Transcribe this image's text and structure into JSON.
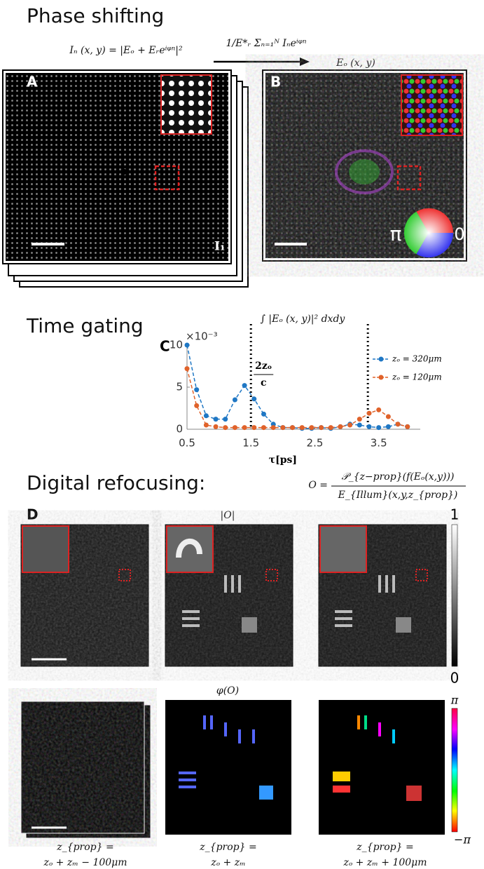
{
  "headings": {
    "phase": "Phase shifting",
    "time": "Time gating",
    "refocus": "Digital refocusing:"
  },
  "phase_shifting": {
    "equation": "Iₙ (x, y) = |Eₒ + Eᵣeⁱᵠⁿ|²",
    "arrow_label": "1/E*ᵣ Σₙ₌₁ᴺ Iₙeⁱᵠⁿ",
    "result": "Eₒ (x, y)",
    "panel_a": "A",
    "frame_label": "I₁",
    "panel_b": "B",
    "wheel_left": "π",
    "wheel_right": "0"
  },
  "time_gating": {
    "integral": "∫ |Eₒ (x, y)|² dxdy"
  },
  "chart_data": {
    "type": "line",
    "panel_label": "C",
    "multiplier": "×10⁻³",
    "x_label": "τ[ps]",
    "annotation_top": "2zₒ",
    "annotation_bottom": "c",
    "vlines": [
      1.5,
      3.33
    ],
    "x": [
      0.5,
      0.65,
      0.8,
      0.95,
      1.1,
      1.25,
      1.4,
      1.55,
      1.7,
      1.85,
      2.0,
      2.15,
      2.3,
      2.45,
      2.6,
      2.75,
      2.9,
      3.05,
      3.2,
      3.35,
      3.5,
      3.65,
      3.8,
      3.95
    ],
    "series": [
      {
        "name": "zₒ = 320μm",
        "color": "#1f77c4",
        "values": [
          10,
          4.7,
          1.6,
          1.2,
          1.2,
          3.5,
          5.2,
          3.6,
          1.8,
          0.6,
          0.2,
          0.2,
          0.1,
          0.1,
          0.2,
          0.1,
          0.3,
          0.6,
          0.5,
          0.3,
          0.2,
          0.3,
          0.6,
          0.3
        ]
      },
      {
        "name": "zₒ = 120μm",
        "color": "#e0622a",
        "values": [
          7.2,
          2.8,
          0.5,
          0.3,
          0.2,
          0.2,
          0.2,
          0.2,
          0.2,
          0.2,
          0.2,
          0.2,
          0.2,
          0.2,
          0.2,
          0.2,
          0.3,
          0.5,
          1.2,
          1.9,
          2.3,
          1.5,
          0.6,
          0.3
        ]
      }
    ],
    "xlim": [
      0.5,
      4.15
    ],
    "ylim": [
      0,
      10
    ],
    "xticks": [
      0.5,
      1.5,
      2.5,
      3.5
    ],
    "yticks": [
      0,
      5,
      10
    ]
  },
  "refocusing": {
    "eq_left": "O =",
    "eq_numerator": "𝒫_{z−prop}(f(Eₒ(x,y)))",
    "eq_denominator": "E_{Illum}(x,y,z_{prop})",
    "panel_d": "D",
    "magnitude_title": "|O|",
    "magnitude_max": "1",
    "magnitude_min": "0",
    "phase_title": "φ(O)",
    "phase_max": "π",
    "phase_min": "−π",
    "captions": [
      {
        "top": "z_{prop} =",
        "bottom": "zₒ + zₘ − 100μm"
      },
      {
        "top": "z_{prop} =",
        "bottom": "zₒ + zₘ"
      },
      {
        "top": "z_{prop} =",
        "bottom": "zₒ + zₘ + 100μm"
      }
    ]
  }
}
